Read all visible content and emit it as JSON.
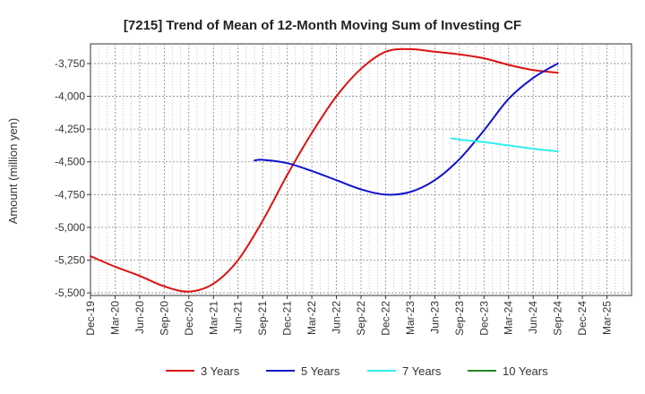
{
  "chart_data": {
    "type": "line",
    "title": "[7215]  Trend of Mean of 12-Month Moving Sum of Investing CF",
    "ylabel": "Amount (million yen)",
    "xlabel": "",
    "ylim": [
      -5520,
      -3600
    ],
    "yticks": [
      -3750,
      -4000,
      -4250,
      -4500,
      -4750,
      -5000,
      -5250,
      -5500
    ],
    "ytick_labels": [
      "-3,750",
      "-4,000",
      "-4,250",
      "-4,500",
      "-4,750",
      "-5,000",
      "-5,250",
      "-5,500"
    ],
    "xticks": [
      "Dec-19",
      "Mar-20",
      "Jun-20",
      "Sep-20",
      "Dec-20",
      "Mar-21",
      "Jun-21",
      "Sep-21",
      "Dec-21",
      "Mar-22",
      "Jun-22",
      "Sep-22",
      "Dec-22",
      "Mar-23",
      "Jun-23",
      "Sep-23",
      "Dec-23",
      "Mar-24",
      "Jun-24",
      "Sep-24",
      "Dec-24",
      "Mar-25"
    ],
    "grid": true,
    "legend_position": "bottom",
    "series": [
      {
        "name": "3 Years",
        "color": "#dd1111",
        "points": [
          [
            0,
            -5220
          ],
          [
            1,
            -5300
          ],
          [
            2,
            -5370
          ],
          [
            3,
            -5450
          ],
          [
            4,
            -5490
          ],
          [
            5,
            -5430
          ],
          [
            6,
            -5250
          ],
          [
            7,
            -4950
          ],
          [
            8,
            -4600
          ],
          [
            9,
            -4280
          ],
          [
            10,
            -4000
          ],
          [
            11,
            -3790
          ],
          [
            12,
            -3660
          ],
          [
            13,
            -3640
          ],
          [
            14,
            -3660
          ],
          [
            15,
            -3680
          ],
          [
            16,
            -3710
          ],
          [
            17,
            -3760
          ],
          [
            18,
            -3800
          ],
          [
            19,
            -3820
          ]
        ]
      },
      {
        "name": "5 Years",
        "color": "#1111cc",
        "points": [
          [
            6.67,
            -4490
          ],
          [
            7,
            -4485
          ],
          [
            8,
            -4510
          ],
          [
            9,
            -4570
          ],
          [
            10,
            -4640
          ],
          [
            11,
            -4710
          ],
          [
            12,
            -4750
          ],
          [
            13,
            -4730
          ],
          [
            14,
            -4640
          ],
          [
            15,
            -4480
          ],
          [
            16,
            -4260
          ],
          [
            17,
            -4020
          ],
          [
            18,
            -3860
          ],
          [
            19,
            -3750
          ]
        ]
      },
      {
        "name": "7 Years",
        "color": "#33eeee",
        "points": [
          [
            14.67,
            -4320
          ],
          [
            15,
            -4330
          ],
          [
            16,
            -4350
          ],
          [
            17,
            -4375
          ],
          [
            18,
            -4400
          ],
          [
            19,
            -4420
          ]
        ]
      },
      {
        "name": "10 Years",
        "color": "#228822",
        "points": []
      }
    ]
  }
}
